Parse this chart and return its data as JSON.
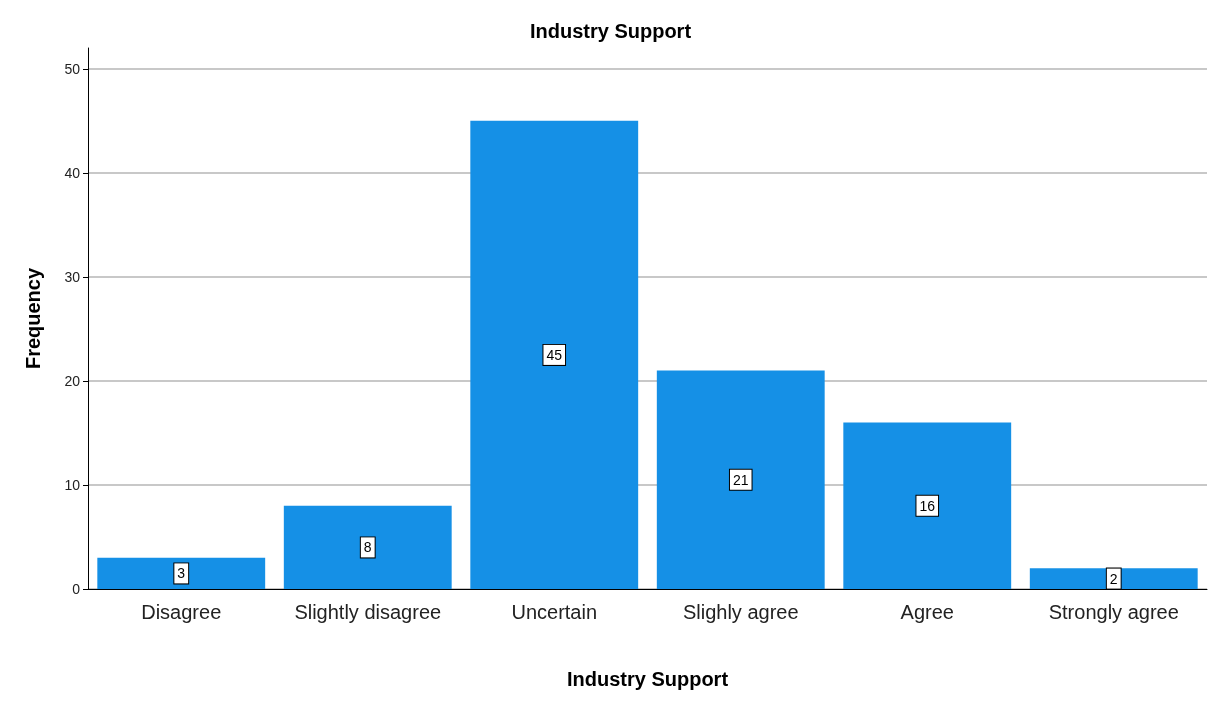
{
  "chart_data": {
    "type": "bar",
    "title": "Industry Support",
    "xlabel": "Industry Support",
    "ylabel": "Frequency",
    "categories": [
      "Disagree",
      "Slightly disagree",
      "Uncertain",
      "Slighly agree",
      "Agree",
      "Strongly agree"
    ],
    "values": [
      3,
      8,
      45,
      21,
      16,
      2
    ],
    "color": "#1590e6",
    "ylim": [
      0,
      52
    ],
    "yticks": [
      0,
      10,
      20,
      30,
      40,
      50
    ],
    "grid": "y",
    "data_labels": true
  }
}
